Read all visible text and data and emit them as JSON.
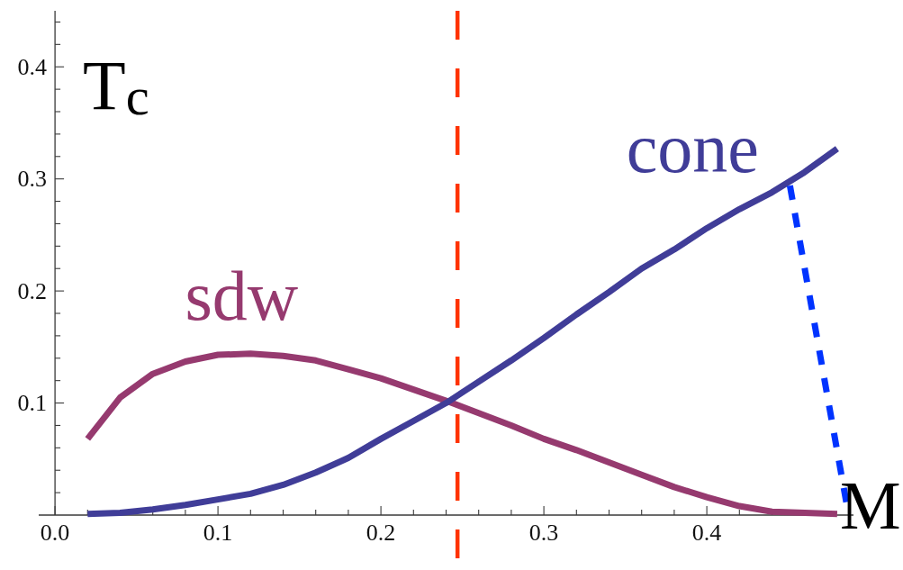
{
  "chart_data": {
    "type": "line",
    "xlabel": "M",
    "ylabel": "T$_{c}$",
    "xlim": [
      -0.01,
      0.49
    ],
    "ylim": [
      0,
      0.45
    ],
    "xticks": [
      {
        "value": 0,
        "label": "0.0"
      },
      {
        "value": 0.02,
        "label": null
      },
      {
        "value": 0.04,
        "label": null
      },
      {
        "value": 0.06,
        "label": null
      },
      {
        "value": 0.08,
        "label": null
      },
      0.1,
      {
        "value": 0.12,
        "label": null
      },
      {
        "value": 0.14,
        "label": null
      },
      {
        "value": 0.16,
        "label": null
      },
      {
        "value": 0.18,
        "label": null
      },
      0.2,
      {
        "value": 0.22,
        "label": null
      },
      {
        "value": 0.24,
        "label": null
      },
      {
        "value": 0.26,
        "label": null
      },
      {
        "value": 0.28,
        "label": null
      },
      0.3,
      {
        "value": 0.32,
        "label": null
      },
      {
        "value": 0.34,
        "label": null
      },
      {
        "value": 0.36,
        "label": null
      },
      {
        "value": 0.38,
        "label": null
      },
      0.4,
      {
        "value": 0.42,
        "label": null
      },
      {
        "value": 0.44,
        "label": null
      },
      {
        "value": 0.46,
        "label": null
      }
    ],
    "yticks": [
      {
        "value": 0.02,
        "label": null
      },
      {
        "value": 0.04,
        "label": null
      },
      {
        "value": 0.06,
        "label": null
      },
      {
        "value": 0.08,
        "label": null
      },
      0.1,
      {
        "value": 0.12,
        "label": null
      },
      {
        "value": 0.14,
        "label": null
      },
      {
        "value": 0.16,
        "label": null
      },
      {
        "value": 0.18,
        "label": null
      },
      0.2,
      {
        "value": 0.22,
        "label": null
      },
      {
        "value": 0.24,
        "label": null
      },
      {
        "value": 0.26,
        "label": null
      },
      {
        "value": 0.28,
        "label": null
      },
      0.3,
      {
        "value": 0.32,
        "label": null
      },
      {
        "value": 0.34,
        "label": null
      },
      {
        "value": 0.36,
        "label": null
      },
      {
        "value": 0.38,
        "label": null
      },
      0.4,
      {
        "value": 0.42,
        "label": null
      },
      {
        "value": 0.44,
        "label": null
      }
    ],
    "x": [
      0.02,
      0.04,
      0.06,
      0.08,
      0.1,
      0.12,
      0.14,
      0.16,
      0.18,
      0.2,
      0.22,
      0.24,
      0.26,
      0.28,
      0.3,
      0.32,
      0.34,
      0.36,
      0.38,
      0.4,
      0.42,
      0.44,
      0.46,
      0.48
    ],
    "series": [
      {
        "name": "sdw",
        "color": "#963a6f",
        "values": [
          0.068,
          0.105,
          0.126,
          0.137,
          0.143,
          0.144,
          0.142,
          0.138,
          0.13,
          0.122,
          0.112,
          0.102,
          0.091,
          0.08,
          0.068,
          0.058,
          0.047,
          0.036,
          0.025,
          0.016,
          0.008,
          0.003,
          0.002,
          0.001
        ]
      },
      {
        "name": "cone",
        "color": "#403d98",
        "values": [
          0.001,
          0.002,
          0.005,
          0.009,
          0.014,
          0.019,
          0.027,
          0.038,
          0.051,
          0.068,
          0.084,
          0.1,
          0.119,
          0.138,
          0.158,
          0.179,
          0.199,
          0.22,
          0.237,
          0.256,
          0.273,
          0.288,
          0.306,
          0.327
        ]
      },
      {
        "color": "#0033ff",
        "line_style": "dashed",
        "x": [
          0.451,
          0.487
        ],
        "values": [
          0.294,
          0
        ]
      }
    ],
    "ref_lines": [
      {
        "axis": "x",
        "value": 0.247,
        "color": "#ff3300",
        "line_style": "dashed"
      }
    ]
  }
}
